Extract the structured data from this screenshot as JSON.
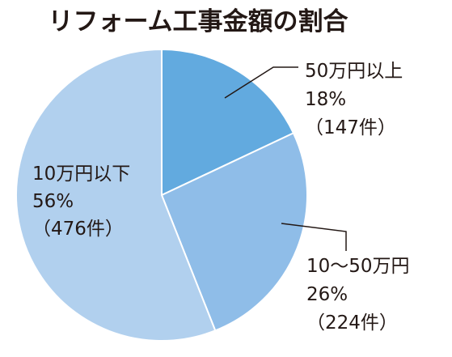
{
  "chart_data": {
    "type": "pie",
    "title": "リフォーム工事金額の割合",
    "slices": [
      {
        "name": "50万円以上",
        "percent_label": "18%",
        "count_label": "（147件）",
        "value": 18,
        "count": 147,
        "color": "#62aadf"
      },
      {
        "name": "10〜50万円",
        "percent_label": "26%",
        "count_label": "（224件）",
        "value": 26,
        "count": 224,
        "color": "#8fbde8"
      },
      {
        "name": "10万円以下",
        "percent_label": "56%",
        "count_label": "（476件）",
        "value": 56,
        "count": 476,
        "color": "#b1d0ee"
      }
    ],
    "slice_border_color": "#ffffff",
    "leader_line_color": "#231815"
  }
}
